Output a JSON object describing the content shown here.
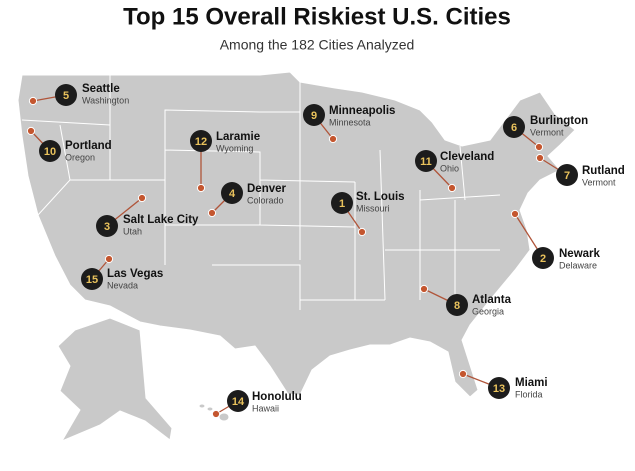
{
  "title": "Top 15 Overall Riskiest U.S. Cities",
  "subtitle": "Among the 182 Cities Analyzed",
  "cities": [
    {
      "rank": 1,
      "name": "St. Louis",
      "state": "Missouri"
    },
    {
      "rank": 2,
      "name": "Newark",
      "state": "Delaware"
    },
    {
      "rank": 3,
      "name": "Salt Lake City",
      "state": "Utah"
    },
    {
      "rank": 4,
      "name": "Denver",
      "state": "Colorado"
    },
    {
      "rank": 5,
      "name": "Seattle",
      "state": "Washington"
    },
    {
      "rank": 6,
      "name": "Burlington",
      "state": "Vermont"
    },
    {
      "rank": 7,
      "name": "Rutland",
      "state": "Vermont"
    },
    {
      "rank": 8,
      "name": "Atlanta",
      "state": "Georgia"
    },
    {
      "rank": 9,
      "name": "Minneapolis",
      "state": "Minnesota"
    },
    {
      "rank": 10,
      "name": "Portland",
      "state": "Oregon"
    },
    {
      "rank": 11,
      "name": "Cleveland",
      "state": "Ohio"
    },
    {
      "rank": 12,
      "name": "Laramie",
      "state": "Wyoming"
    },
    {
      "rank": 13,
      "name": "Miami",
      "state": "Florida"
    },
    {
      "rank": 14,
      "name": "Honolulu",
      "state": "Hawaii"
    },
    {
      "rank": 15,
      "name": "Las Vegas",
      "state": "Nevada"
    }
  ]
}
